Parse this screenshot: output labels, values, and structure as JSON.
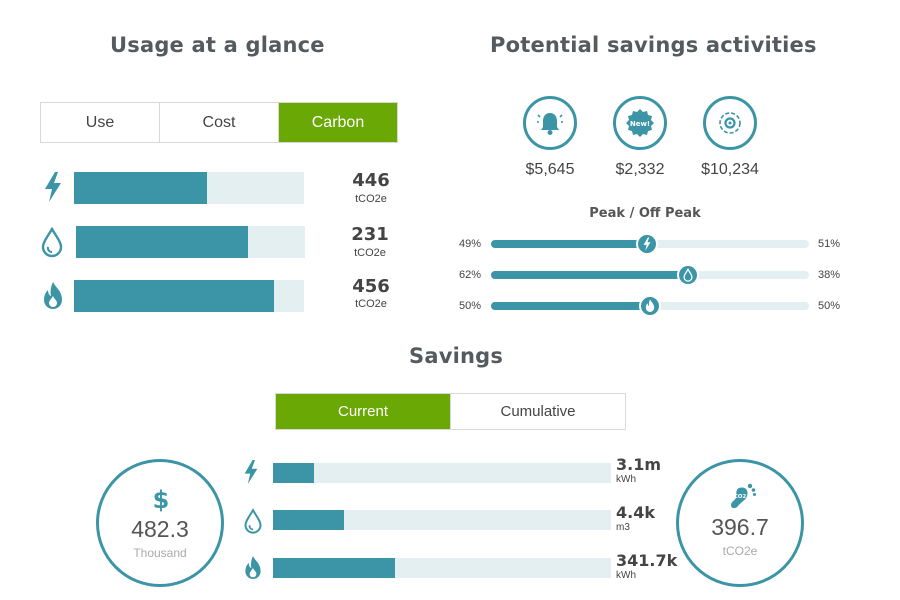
{
  "usage": {
    "title": "Usage at a glance",
    "tabs": [
      "Use",
      "Cost",
      "Carbon"
    ],
    "active_tab": "Carbon",
    "rows": [
      {
        "icon": "electricity-icon",
        "value": "446",
        "unit": "tCO2e",
        "fill_fraction": 0.58
      },
      {
        "icon": "water-icon",
        "value": "231",
        "unit": "tCO2e",
        "fill_fraction": 0.75
      },
      {
        "icon": "gas-flame-icon",
        "value": "456",
        "unit": "tCO2e",
        "fill_fraction": 0.87
      }
    ]
  },
  "potential": {
    "title": "Potential savings activities",
    "activities": [
      {
        "icon": "bell-alert-icon",
        "amount": "$5,645"
      },
      {
        "icon": "new-badge-icon",
        "icon_text": "New!",
        "amount": "$2,332"
      },
      {
        "icon": "settings-target-icon",
        "amount": "$10,234"
      }
    ],
    "peak_title": "Peak / Off Peak",
    "peak_rows": [
      {
        "icon": "electricity-icon",
        "left": "49%",
        "right": "51%",
        "fraction": 0.49
      },
      {
        "icon": "water-icon",
        "left": "62%",
        "right": "38%",
        "fraction": 0.62
      },
      {
        "icon": "gas-flame-icon",
        "left": "50%",
        "right": "50%",
        "fraction": 0.5
      }
    ]
  },
  "savings": {
    "title": "Savings",
    "tabs": [
      "Current",
      "Cumulative"
    ],
    "active_tab": "Current",
    "money": {
      "icon": "dollar-icon",
      "value": "482.3",
      "unit": "Thousand"
    },
    "carbon": {
      "icon": "carbon-footprint-icon",
      "icon_text": "CO2",
      "value": "396.7",
      "unit": "tCO2e"
    },
    "rows": [
      {
        "icon": "electricity-icon",
        "value": "3.1m",
        "unit": "kWh",
        "fill_fraction": 0.12
      },
      {
        "icon": "water-icon",
        "value": "4.4k",
        "unit": "m3",
        "fill_fraction": 0.21
      },
      {
        "icon": "gas-flame-icon",
        "value": "341.7k",
        "unit": "kWh",
        "fill_fraction": 0.36
      }
    ]
  },
  "colors": {
    "accent": "#3b95a6",
    "active_tab": "#6aa805",
    "track": "#e3eff1"
  }
}
